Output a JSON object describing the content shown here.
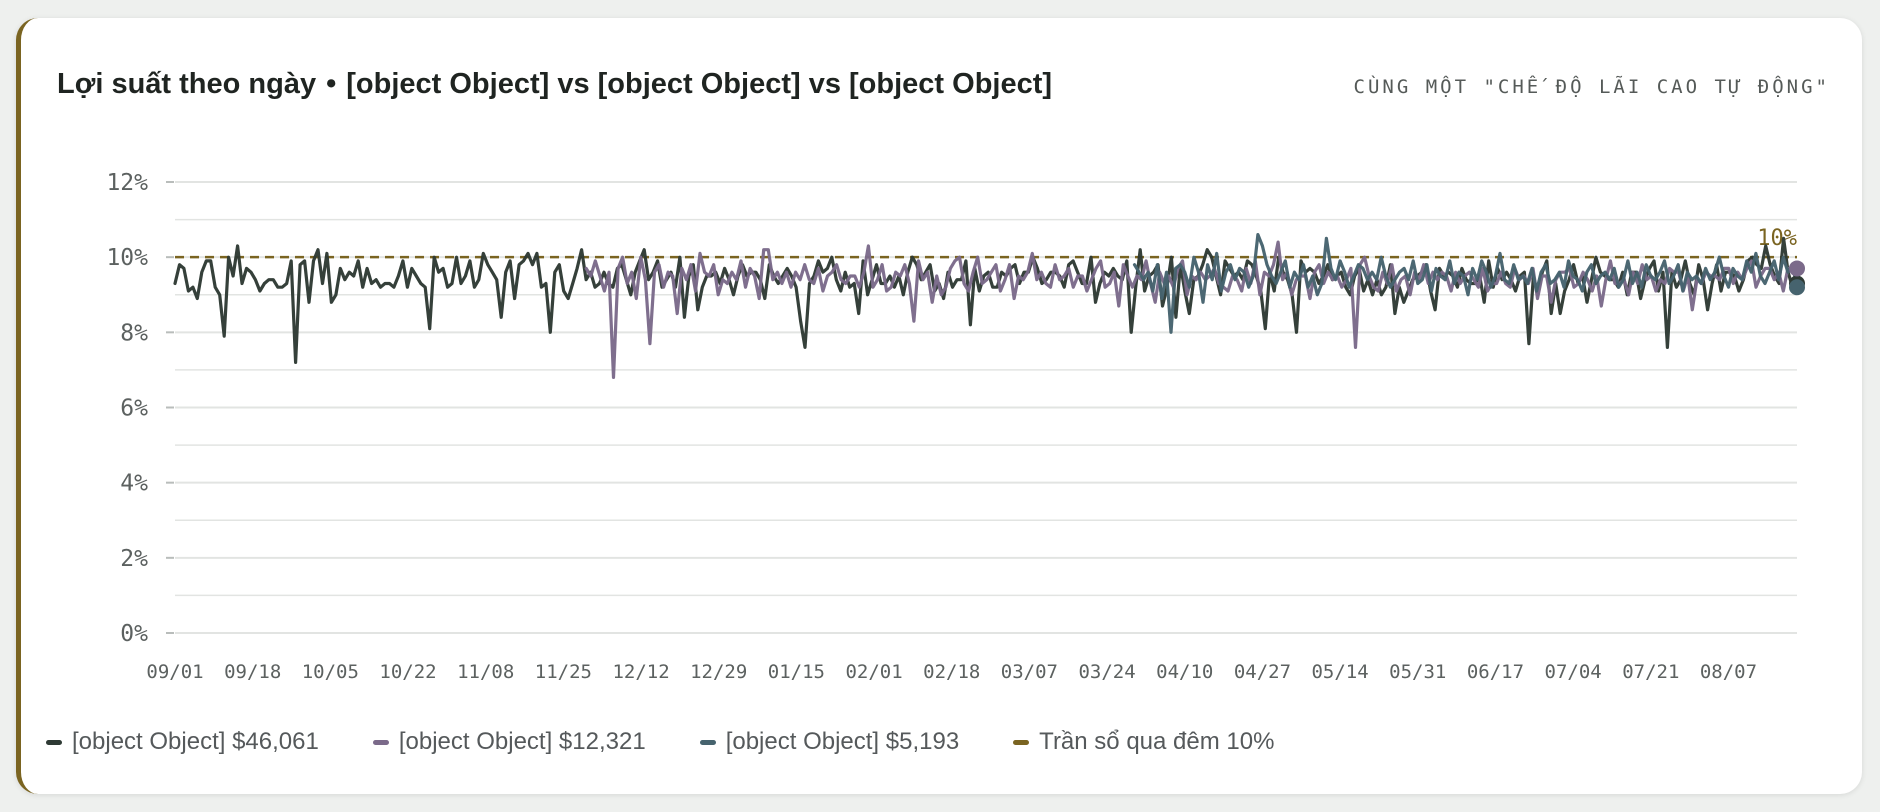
{
  "header": {
    "title": "Lợi suất theo ngày",
    "separator": "•",
    "subtitle": "[object Object] vs [object Object] vs [object Object]",
    "note": "CÙNG MỘT \"CHẾ ĐỘ LÃI CAO TỰ ĐỘNG\""
  },
  "colors": {
    "accent": "#7a6421",
    "series1": "#2e3a34",
    "series2": "#7b6a8a",
    "series3": "#46636e",
    "cap": "#7a6421",
    "grid": "#e2e4e2",
    "axis_text": "#5c6160"
  },
  "legend": [
    {
      "label": "[object Object] $46,061",
      "color": "#2e3a34"
    },
    {
      "label": "[object Object] $12,321",
      "color": "#7b6a8a"
    },
    {
      "label": "[object Object] $5,193",
      "color": "#46636e"
    },
    {
      "label": "Trần sổ qua đêm 10%",
      "color": "#7a6421"
    }
  ],
  "chart_data": {
    "type": "line",
    "x_tick_labels": [
      "09/01",
      "09/18",
      "10/05",
      "10/22",
      "11/08",
      "11/25",
      "12/12",
      "12/29",
      "01/15",
      "02/01",
      "02/18",
      "03/07",
      "03/24",
      "04/10",
      "04/27",
      "05/14",
      "05/31",
      "06/17",
      "07/04",
      "07/21",
      "08/07"
    ],
    "x_unit": "day",
    "x_range": [
      0,
      355
    ],
    "y_tick_labels": [
      "0%",
      "2%",
      "4%",
      "6%",
      "8%",
      "10%",
      "12%"
    ],
    "ylim": [
      0,
      12
    ],
    "y_unit": "%",
    "grid": true,
    "reference_line": {
      "value": 10,
      "label": "10%",
      "style": "dashed"
    },
    "series": [
      {
        "name": "[object Object] $46,061",
        "start_day": 0,
        "end_day": 355,
        "end_value": 9.3,
        "values": [
          9.3,
          9.8,
          9.7,
          9.1,
          9.2,
          8.9,
          9.6,
          9.9,
          9.9,
          9.2,
          9.0,
          7.9,
          10.0,
          9.5,
          10.3,
          9.3,
          9.7,
          9.6,
          9.4,
          9.1,
          9.3,
          9.4,
          9.4,
          9.2,
          9.2,
          9.3,
          9.9,
          7.2,
          9.8,
          9.9,
          8.8,
          9.9,
          10.2,
          9.3,
          10.1,
          8.8,
          9.0,
          9.7,
          9.4,
          9.6,
          9.5,
          9.9,
          9.2,
          9.7,
          9.3,
          9.4,
          9.2,
          9.3,
          9.3,
          9.2,
          9.5,
          9.9,
          9.2,
          9.7,
          9.5,
          9.3,
          9.2,
          8.1,
          10.0,
          9.6,
          9.7,
          9.2,
          9.3,
          10.0,
          9.3,
          9.5,
          9.9,
          9.2,
          9.4,
          10.1,
          9.8,
          9.6,
          9.4,
          8.4,
          9.6,
          9.9,
          8.9,
          9.8,
          9.9,
          10.1,
          9.8,
          10.1,
          9.2,
          9.3,
          8.0,
          9.6,
          9.8,
          9.1,
          8.9,
          9.3,
          9.7,
          10.2,
          9.4,
          9.6,
          9.2,
          9.3,
          9.6,
          9.3,
          9.2,
          9.7,
          9.8,
          9.4,
          9.0,
          9.6,
          9.9,
          10.2,
          9.4,
          9.6,
          9.9,
          9.2,
          9.4,
          9.6,
          9.2,
          10.0,
          8.4,
          9.5,
          9.8,
          8.6,
          9.2,
          9.5,
          9.5,
          9.6,
          9.3,
          9.7,
          9.4,
          9.0,
          9.5,
          9.8,
          9.5,
          9.6,
          9.6,
          9.4,
          8.9,
          9.8,
          9.5,
          9.3,
          9.5,
          9.7,
          9.5,
          9.2,
          8.3,
          7.6,
          9.3,
          9.5,
          9.9,
          9.6,
          9.7,
          10.0,
          9.4,
          9.1,
          9.6,
          9.2,
          9.3,
          8.5,
          9.9,
          9.0,
          9.4,
          9.8,
          9.3,
          9.3,
          9.5,
          9.2,
          9.5,
          9.0,
          9.6,
          10.0,
          9.8,
          9.4,
          9.6,
          9.8,
          9.1,
          9.3,
          8.9,
          9.6,
          9.2,
          9.4,
          9.4,
          9.9,
          8.2,
          9.7,
          9.1,
          9.5,
          9.6,
          9.2,
          9.2,
          9.6,
          9.5,
          9.7,
          9.8,
          9.3,
          9.6,
          9.6,
          10.0,
          9.7,
          9.3,
          9.4,
          9.6,
          9.6,
          9.5,
          9.2,
          9.8,
          9.9,
          9.6,
          9.3,
          9.3,
          10.0,
          8.8,
          9.3,
          9.6,
          9.5,
          9.7,
          9.5,
          9.4,
          9.9,
          8.0,
          9.2,
          10.2,
          9.1,
          9.5,
          9.6,
          9.8,
          8.7,
          9.2,
          10.0,
          8.4,
          9.8,
          9.1,
          8.5,
          9.4,
          9.5,
          9.8,
          10.2,
          10.0,
          9.5,
          9.0,
          9.9,
          9.7,
          9.5,
          9.6,
          9.4,
          9.9,
          9.8,
          9.5,
          9.1,
          8.1,
          9.6,
          9.1,
          10.0,
          9.6,
          9.4,
          9.0,
          8.0,
          9.9,
          9.6,
          9.7,
          9.6,
          9.3,
          9.5,
          9.8,
          9.4,
          9.5,
          9.6,
          9.2,
          9.0,
          9.5,
          9.7,
          9.1,
          9.4,
          9.0,
          9.4,
          9.0,
          9.2,
          9.8,
          8.5,
          9.2,
          8.8,
          9.1,
          9.4,
          9.5,
          9.6,
          9.8,
          9.1,
          8.6,
          9.7,
          9.5,
          9.6,
          9.5,
          9.2,
          9.7,
          9.4,
          9.3,
          9.3,
          9.5,
          8.8,
          9.9,
          9.2,
          9.7,
          9.4,
          9.6,
          9.4,
          9.1,
          9.5,
          9.6,
          7.7,
          9.5,
          9.0,
          9.6,
          9.9,
          8.5,
          9.3,
          8.5,
          9.1,
          9.4,
          9.8,
          9.3,
          9.5,
          8.8,
          9.4,
          10.0,
          9.6,
          9.5,
          9.4,
          9.4,
          9.2,
          9.6,
          9.0,
          9.6,
          9.6,
          8.9,
          9.4,
          9.7,
          9.9,
          9.1,
          9.6,
          7.6,
          9.6,
          9.2,
          9.4,
          9.9,
          9.3,
          9.0,
          9.8,
          9.4,
          8.6,
          9.3,
          9.8,
          9.1,
          9.6,
          9.6,
          9.5,
          9.1,
          9.4,
          9.9,
          10.0,
          9.8,
          9.7,
          10.3,
          9.8,
          9.5,
          9.3,
          10.5,
          9.6,
          9.2,
          9.3
        ]
      },
      {
        "name": "[object Object] $12,321",
        "start_day": 90,
        "end_day": 355,
        "end_value": 9.7,
        "values": [
          9.7,
          9.5,
          9.9,
          9.5,
          9.1,
          9.6,
          6.8,
          9.7,
          10.0,
          9.3,
          9.6,
          8.9,
          10.0,
          9.4,
          7.7,
          9.6,
          9.8,
          9.2,
          9.6,
          9.5,
          8.5,
          9.7,
          9.4,
          9.8,
          9.1,
          10.1,
          9.6,
          9.5,
          9.8,
          9.0,
          9.4,
          9.3,
          9.6,
          9.4,
          9.9,
          9.2,
          9.7,
          9.5,
          8.9,
          10.2,
          10.2,
          9.4,
          9.6,
          9.3,
          9.6,
          9.2,
          9.6,
          9.4,
          9.8,
          9.4,
          9.3,
          9.7,
          9.1,
          9.5,
          9.6,
          9.8,
          9.4,
          9.3,
          9.5,
          9.5,
          9.2,
          9.6,
          10.3,
          9.2,
          9.4,
          9.8,
          9.1,
          9.2,
          9.6,
          9.5,
          9.8,
          9.3,
          8.3,
          9.9,
          9.4,
          9.6,
          8.8,
          9.5,
          9.0,
          9.2,
          9.7,
          9.9,
          10.0,
          9.3,
          9.1,
          9.6,
          10.0,
          9.3,
          9.4,
          9.6,
          9.8,
          9.1,
          9.4,
          9.8,
          8.9,
          9.5,
          9.4,
          9.6,
          10.1,
          9.4,
          9.6,
          9.3,
          9.2,
          9.8,
          9.4,
          9.5,
          9.7,
          9.2,
          9.5,
          9.5,
          9.1,
          9.4,
          9.7,
          9.9,
          9.2,
          9.3,
          9.6,
          8.7,
          9.8,
          9.5,
          9.2,
          9.5,
          9.4,
          9.9,
          9.3,
          8.8,
          9.6,
          9.3,
          9.5,
          9.2,
          9.7,
          9.9,
          9.0,
          9.5,
          9.4,
          9.6,
          9.4,
          9.5,
          9.7,
          9.3,
          9.2,
          9.1,
          9.5,
          9.4,
          9.1,
          9.7,
          9.3,
          9.9,
          9.0,
          9.6,
          9.5,
          9.8,
          10.4,
          9.4,
          9.6,
          9.0,
          9.4,
          9.5,
          9.5,
          8.9,
          9.6,
          9.8,
          9.3,
          9.6,
          9.4,
          9.5,
          9.2,
          9.4,
          9.7,
          7.6,
          9.8,
          10.0,
          9.5,
          9.2,
          9.1,
          9.6,
          9.3,
          9.8,
          9.1,
          9.4,
          9.5,
          9.0,
          9.6,
          9.4,
          9.8,
          9.3,
          9.6,
          9.4,
          9.6,
          9.5,
          9.1,
          9.6,
          9.3,
          9.5,
          9.6,
          9.4,
          9.2,
          9.7,
          9.1,
          9.3,
          9.3,
          9.6,
          9.3,
          9.2,
          9.7,
          9.4,
          9.5,
          9.3,
          9.7,
          8.9,
          9.5,
          9.5,
          8.8,
          9.4,
          9.6,
          9.6,
          9.7,
          9.2,
          9.3,
          9.6,
          9.4,
          9.1,
          9.5,
          8.7,
          9.4,
          9.9,
          9.3,
          9.3,
          9.4,
          9.0,
          9.6,
          9.3,
          9.8,
          9.4,
          9.5,
          9.1,
          9.4,
          9.3,
          9.7,
          9.6,
          9.6,
          9.1,
          9.5,
          8.6,
          9.4,
          9.3,
          9.6,
          9.5,
          9.5,
          9.4,
          9.7,
          9.7,
          9.3,
          9.6,
          9.4,
          9.7,
          9.9,
          9.2,
          9.5,
          9.7,
          9.7,
          9.4,
          9.6,
          9.1,
          9.7,
          9.6,
          9.7
        ]
      },
      {
        "name": "[object Object] $5,193",
        "start_day": 210,
        "end_day": 355,
        "end_value": 9.2,
        "values": [
          9.8,
          9.6,
          9.4,
          9.6,
          9.1,
          9.8,
          8.9,
          9.6,
          8.0,
          9.7,
          9.8,
          9.6,
          9.2,
          10.0,
          9.6,
          8.8,
          9.8,
          9.4,
          10.1,
          9.1,
          9.6,
          9.8,
          9.4,
          9.7,
          9.6,
          9.2,
          9.5,
          10.6,
          10.3,
          9.8,
          9.5,
          9.3,
          9.6,
          9.9,
          9.2,
          9.6,
          9.4,
          9.8,
          9.2,
          9.5,
          9.0,
          9.3,
          10.5,
          9.7,
          9.4,
          9.9,
          9.6,
          9.2,
          9.5,
          9.8,
          9.7,
          9.4,
          9.6,
          9.4,
          10.0,
          9.5,
          9.2,
          9.4,
          9.6,
          9.7,
          9.4,
          9.9,
          9.3,
          9.4,
          9.8,
          9.1,
          9.7,
          9.5,
          9.4,
          9.9,
          9.3,
          9.6,
          9.5,
          9.0,
          9.7,
          9.4,
          9.9,
          9.6,
          9.2,
          9.5,
          10.1,
          9.4,
          9.3,
          9.8,
          9.4,
          9.5,
          9.3,
          9.7,
          9.1,
          9.6,
          9.8,
          9.3,
          9.4,
          9.6,
          9.2,
          9.9,
          9.5,
          9.4,
          9.1,
          9.6,
          9.8,
          9.3,
          9.5,
          9.6,
          9.4,
          9.7,
          9.2,
          9.4,
          9.9,
          9.3,
          9.6,
          9.2,
          9.8,
          9.5,
          9.4,
          9.6,
          9.9,
          9.3,
          9.5,
          9.8,
          9.1,
          9.6,
          9.4,
          9.5,
          9.3,
          9.7,
          9.4,
          9.6,
          10.0,
          9.5,
          9.2,
          9.7,
          9.5,
          9.4,
          9.9,
          9.6,
          10.1,
          9.5,
          9.3,
          9.6,
          9.9,
          9.4,
          10.0,
          9.6,
          9.8,
          9.2
        ]
      }
    ]
  }
}
